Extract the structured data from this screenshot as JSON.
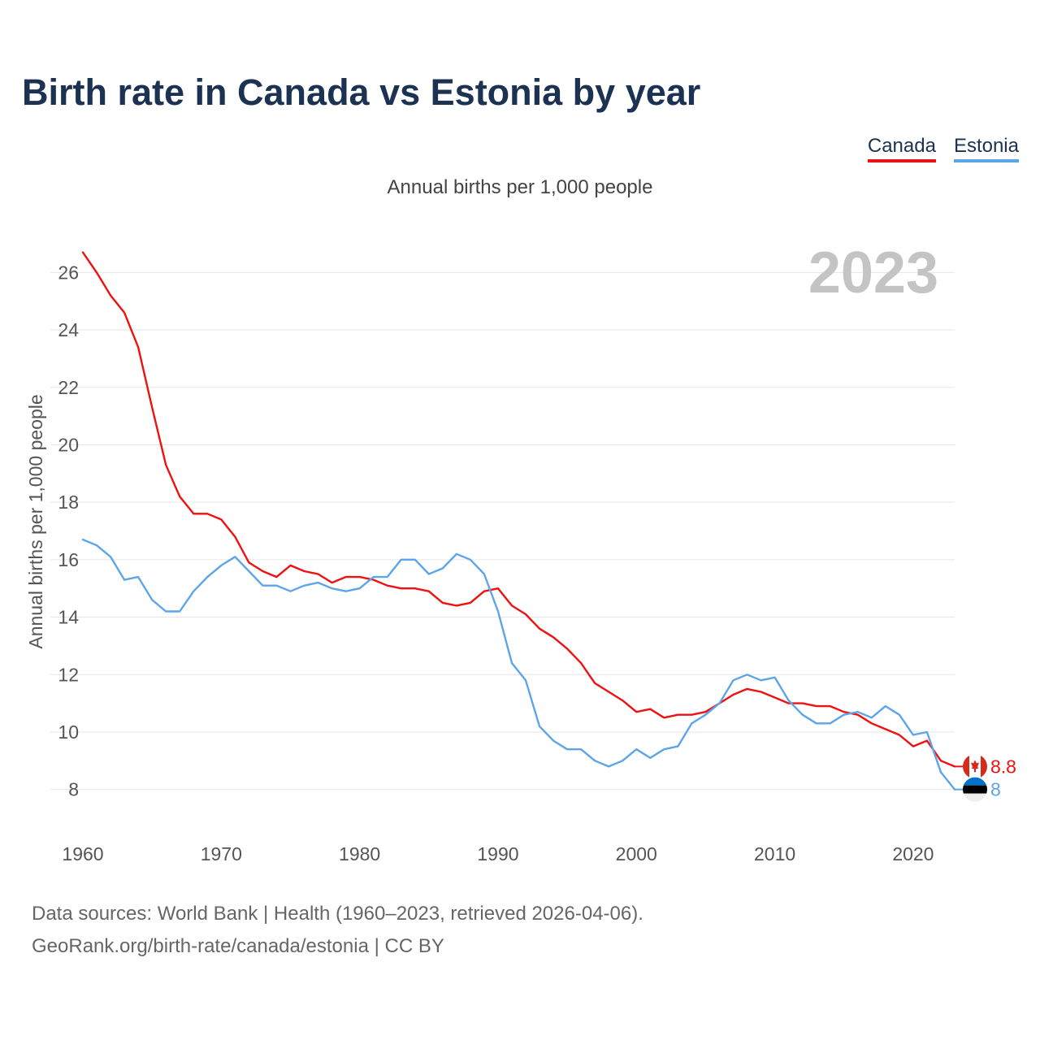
{
  "title": "Birth rate in Canada vs Estonia by year",
  "subtitle": "Annual births per 1,000 people",
  "legend": {
    "canada": "Canada",
    "estonia": "Estonia"
  },
  "footer": {
    "line1": "Data sources: World Bank | Health (1960–2023, retrieved 2026-04-06).",
    "line2": "GeoRank.org/birth-rate/canada/estonia | CC BY"
  },
  "colors": {
    "canada": "#ee1111",
    "estonia": "#5da5e8",
    "grid": "#e6e6e6",
    "title": "#1b3252"
  },
  "chart_data": {
    "type": "line",
    "title": "Birth rate in Canada vs Estonia by year",
    "ylabel": "Annual births per 1,000 people",
    "xlabel": "",
    "current_year": "2023",
    "xlim": [
      1960,
      2023
    ],
    "ylim": [
      7,
      27
    ],
    "x_ticks": [
      1960,
      1970,
      1980,
      1990,
      2000,
      2010,
      2020
    ],
    "y_ticks": [
      8,
      10,
      12,
      14,
      16,
      18,
      20,
      22,
      24,
      26
    ],
    "grid": true,
    "legend_position": "top-right",
    "x": [
      1960,
      1961,
      1962,
      1963,
      1964,
      1965,
      1966,
      1967,
      1968,
      1969,
      1970,
      1971,
      1972,
      1973,
      1974,
      1975,
      1976,
      1977,
      1978,
      1979,
      1980,
      1981,
      1982,
      1983,
      1984,
      1985,
      1986,
      1987,
      1988,
      1989,
      1990,
      1991,
      1992,
      1993,
      1994,
      1995,
      1996,
      1997,
      1998,
      1999,
      2000,
      2001,
      2002,
      2003,
      2004,
      2005,
      2006,
      2007,
      2008,
      2009,
      2010,
      2011,
      2012,
      2013,
      2014,
      2015,
      2016,
      2017,
      2018,
      2019,
      2020,
      2021,
      2022,
      2023
    ],
    "series": [
      {
        "name": "Canada",
        "color": "#ee1111",
        "end_label": "8.8",
        "flag_icon": "canada-flag-icon",
        "values": [
          26.7,
          26.0,
          25.2,
          24.6,
          23.4,
          21.3,
          19.3,
          18.2,
          17.6,
          17.6,
          17.4,
          16.8,
          15.9,
          15.6,
          15.4,
          15.8,
          15.6,
          15.5,
          15.2,
          15.4,
          15.4,
          15.3,
          15.1,
          15.0,
          15.0,
          14.9,
          14.5,
          14.4,
          14.5,
          14.9,
          15.0,
          14.4,
          14.1,
          13.6,
          13.3,
          12.9,
          12.4,
          11.7,
          11.4,
          11.1,
          10.7,
          10.8,
          10.5,
          10.6,
          10.6,
          10.7,
          11.0,
          11.3,
          11.5,
          11.4,
          11.2,
          11.0,
          11.0,
          10.9,
          10.9,
          10.7,
          10.6,
          10.3,
          10.1,
          9.9,
          9.5,
          9.7,
          9.0,
          8.8
        ]
      },
      {
        "name": "Estonia",
        "color": "#5da5e8",
        "end_label": "8",
        "flag_icon": "estonia-flag-icon",
        "values": [
          16.7,
          16.5,
          16.1,
          15.3,
          15.4,
          14.6,
          14.2,
          14.2,
          14.9,
          15.4,
          15.8,
          16.1,
          15.6,
          15.1,
          15.1,
          14.9,
          15.1,
          15.2,
          15.0,
          14.9,
          15.0,
          15.4,
          15.4,
          16.0,
          16.0,
          15.5,
          15.7,
          16.2,
          16.0,
          15.5,
          14.2,
          12.4,
          11.8,
          10.2,
          9.7,
          9.4,
          9.4,
          9.0,
          8.8,
          9.0,
          9.4,
          9.1,
          9.4,
          9.5,
          10.3,
          10.6,
          11.0,
          11.8,
          12.0,
          11.8,
          11.9,
          11.1,
          10.6,
          10.3,
          10.3,
          10.6,
          10.7,
          10.5,
          10.9,
          10.6,
          9.9,
          10.0,
          8.6,
          8.0
        ]
      }
    ]
  }
}
